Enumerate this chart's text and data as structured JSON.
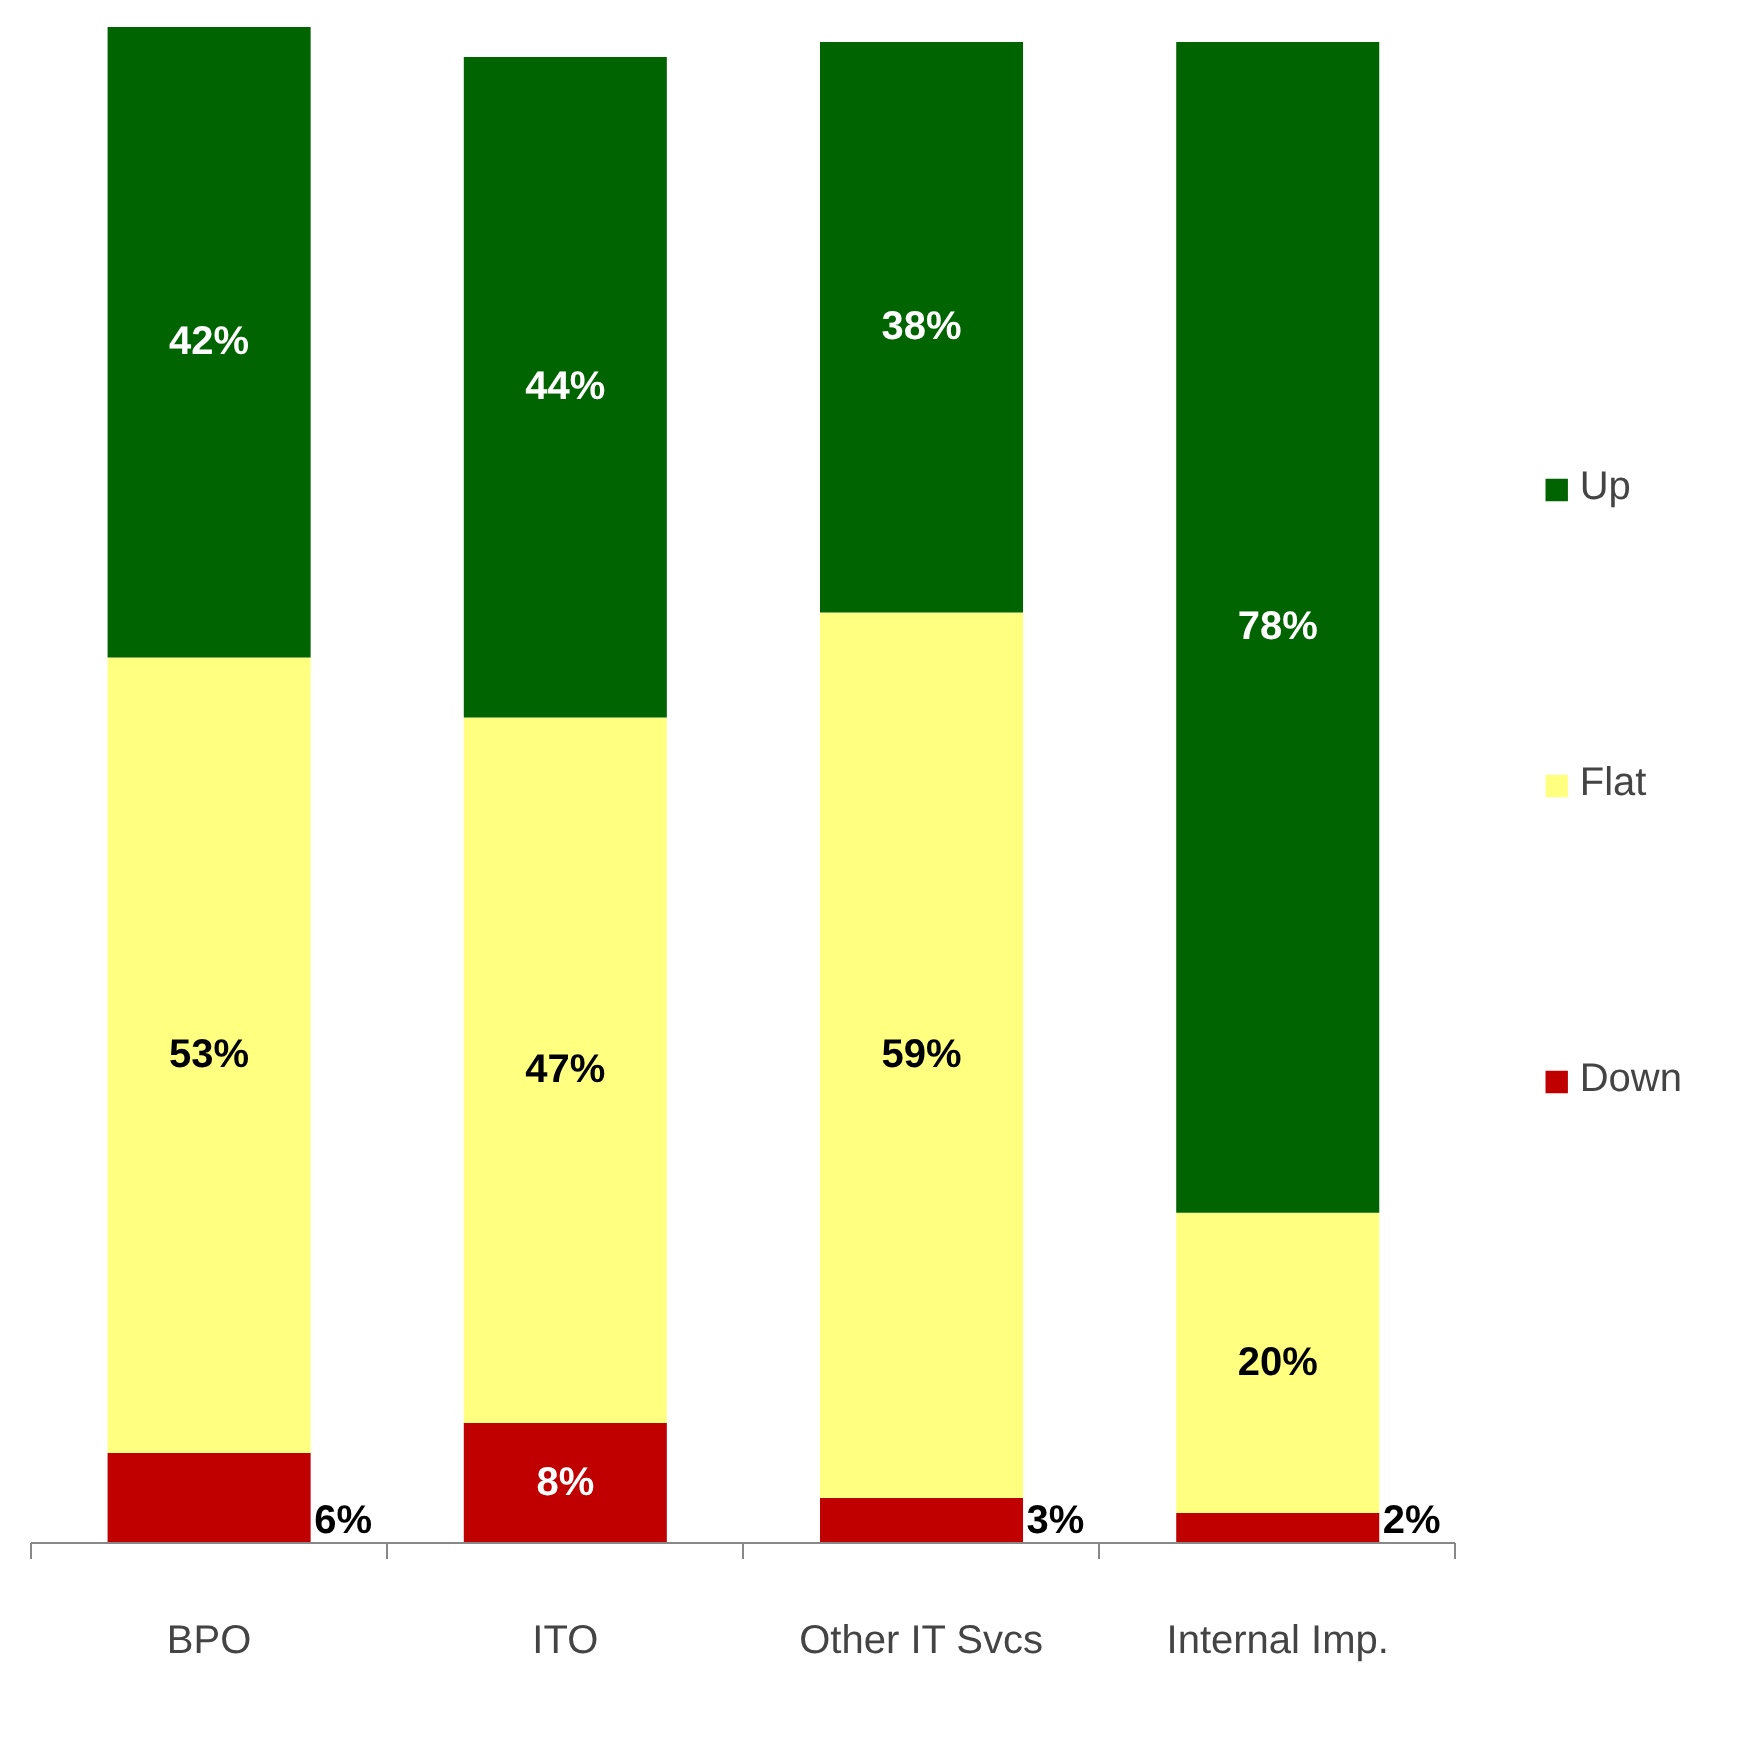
{
  "chart_data": {
    "type": "bar",
    "stacked": true,
    "legend": "right",
    "grid": false,
    "categories": [
      "BPO",
      "ITO",
      "Other IT Svcs",
      "Internal Imp."
    ],
    "series": [
      {
        "name": "Down",
        "color": "#c00000",
        "values": [
          6,
          8,
          3,
          2
        ],
        "value_labels": [
          "6%",
          "8%",
          "3%",
          "2%"
        ]
      },
      {
        "name": "Flat",
        "color": "#ffff80",
        "values": [
          53,
          47,
          59,
          20
        ],
        "value_labels": [
          "53%",
          "47%",
          "59%",
          "20%"
        ]
      },
      {
        "name": "Up",
        "color": "#006400",
        "values": [
          42,
          44,
          38,
          78
        ],
        "value_labels": [
          "42%",
          "44%",
          "38%",
          "78%"
        ]
      }
    ]
  }
}
